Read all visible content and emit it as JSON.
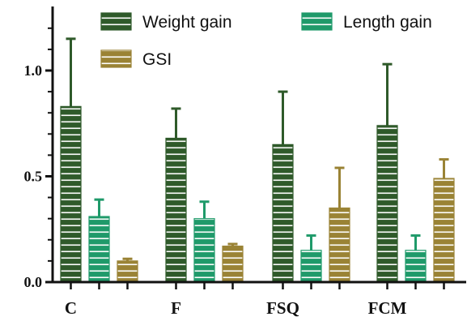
{
  "chart_data": {
    "type": "bar",
    "categories": [
      "C",
      "F",
      "FSQ",
      "FCM"
    ],
    "series": [
      {
        "name": "Weight gain",
        "values": [
          0.83,
          0.68,
          0.65,
          0.74
        ],
        "errors": [
          0.32,
          0.14,
          0.25,
          0.29
        ],
        "color": "#2f5a2a"
      },
      {
        "name": "Length gain",
        "values": [
          0.31,
          0.3,
          0.15,
          0.15
        ],
        "errors": [
          0.08,
          0.08,
          0.07,
          0.07
        ],
        "color": "#1f9a6a"
      },
      {
        "name": "GSI",
        "values": [
          0.1,
          0.17,
          0.35,
          0.49
        ],
        "errors": [
          0.01,
          0.01,
          0.19,
          0.09
        ],
        "color": "#9a8335"
      }
    ],
    "ylim": [
      0,
      1.25
    ],
    "yticks": [
      "0.0",
      "0.5",
      "1.0"
    ],
    "legend_position": "top",
    "grid": false,
    "bar_pattern": "horizontal-white-stripes",
    "error_bars": "upper-only"
  }
}
